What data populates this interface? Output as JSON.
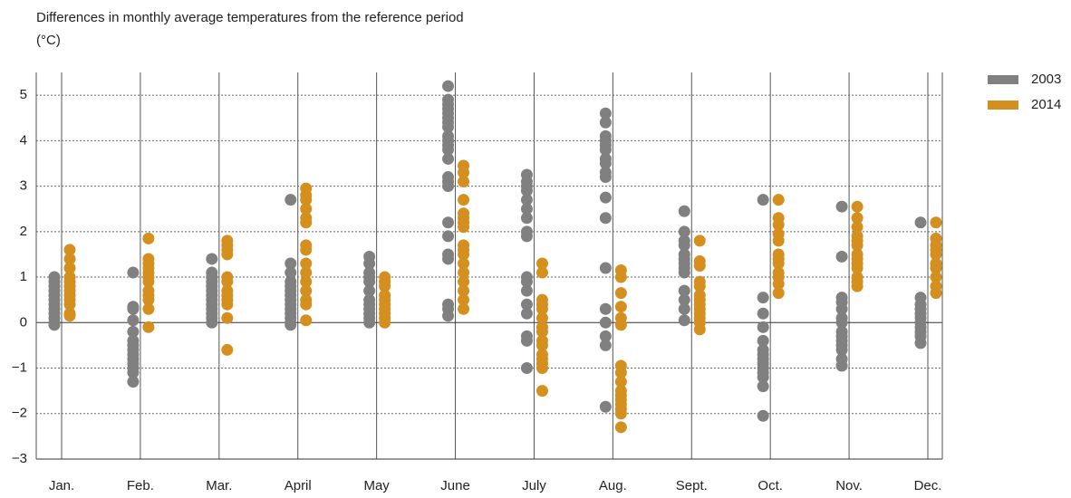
{
  "chart_data": {
    "type": "strip",
    "title": "Differences in monthly average temperatures from the reference period",
    "subtitle": "(°C)",
    "categories": [
      "Jan.",
      "Feb.",
      "Mar.",
      "April",
      "May",
      "June",
      "July",
      "Aug.",
      "Sept.",
      "Oct.",
      "Nov.",
      "Dec."
    ],
    "ylim": [
      -3,
      5.5
    ],
    "yticks": [
      {
        "value": -3,
        "label": "−3"
      },
      {
        "value": -2,
        "label": "−2"
      },
      {
        "value": -1,
        "label": "−1"
      },
      0,
      1,
      2,
      3,
      4,
      5
    ],
    "grid": true,
    "legend": "top-right",
    "series": [
      {
        "name": "2003",
        "color": "#808080",
        "values": [
          [
            1.0,
            0.9,
            0.8,
            0.7,
            0.6,
            0.5,
            0.4,
            0.3,
            0.2,
            0.1,
            0.0,
            -0.05
          ],
          [
            1.1,
            0.35,
            0.3,
            0.05,
            -0.2,
            -0.4,
            -0.5,
            -0.6,
            -0.7,
            -0.8,
            -0.9,
            -1.0,
            -1.1,
            -1.3
          ],
          [
            1.4,
            1.1,
            1.0,
            0.9,
            0.8,
            0.7,
            0.6,
            0.5,
            0.4,
            0.3,
            0.2,
            0.1,
            0.0
          ],
          [
            2.7,
            1.3,
            1.1,
            0.9,
            0.8,
            0.7,
            0.6,
            0.5,
            0.4,
            0.3,
            0.2,
            0.1,
            0.0,
            -0.05
          ],
          [
            1.45,
            1.3,
            1.1,
            1.0,
            0.9,
            0.7,
            0.5,
            0.4,
            0.3,
            0.2,
            0.1,
            0.0
          ],
          [
            5.2,
            4.9,
            4.8,
            4.7,
            4.6,
            4.5,
            4.4,
            4.3,
            4.1,
            4.0,
            3.9,
            3.8,
            3.6,
            3.2,
            3.1,
            3.0,
            2.2,
            1.9,
            1.5,
            1.4,
            0.4,
            0.3,
            0.15
          ],
          [
            3.25,
            3.1,
            3.0,
            2.9,
            2.7,
            2.5,
            2.3,
            2.0,
            1.9,
            1.0,
            0.9,
            0.7,
            0.4,
            0.2,
            -0.3,
            -0.4,
            -1.0
          ],
          [
            4.6,
            4.4,
            4.1,
            4.0,
            3.9,
            3.8,
            3.6,
            3.5,
            3.3,
            3.2,
            2.75,
            2.3,
            1.2,
            0.3,
            0.0,
            -0.3,
            -0.5,
            -1.85
          ],
          [
            2.45,
            2.0,
            1.8,
            1.7,
            1.5,
            1.4,
            1.3,
            1.2,
            1.1,
            0.7,
            0.5,
            0.3,
            0.05
          ],
          [
            2.7,
            0.55,
            0.2,
            -0.1,
            -0.4,
            -0.6,
            -0.7,
            -0.8,
            -0.9,
            -1.0,
            -1.1,
            -1.2,
            -1.4,
            -2.05
          ],
          [
            2.55,
            1.45,
            0.55,
            0.45,
            0.3,
            0.1,
            0.0,
            -0.2,
            -0.3,
            -0.4,
            -0.5,
            -0.6,
            -0.8,
            -0.95
          ],
          [
            2.2,
            0.55,
            0.4,
            0.3,
            0.2,
            0.1,
            0.0,
            -0.1,
            -0.2,
            -0.3,
            -0.45
          ]
        ]
      },
      {
        "name": "2014",
        "color": "#d58f1e",
        "values": [
          [
            1.6,
            1.4,
            1.2,
            1.0,
            0.9,
            0.8,
            0.7,
            0.6,
            0.5,
            0.4,
            0.2,
            0.15
          ],
          [
            1.85,
            1.4,
            1.3,
            1.2,
            1.1,
            1.0,
            0.9,
            0.7,
            0.6,
            0.5,
            0.3,
            -0.1
          ],
          [
            1.8,
            1.7,
            1.6,
            1.5,
            1.0,
            0.9,
            0.7,
            0.6,
            0.5,
            0.4,
            0.1,
            -0.6
          ],
          [
            2.95,
            2.8,
            2.7,
            2.5,
            2.3,
            2.2,
            1.7,
            1.6,
            1.3,
            1.1,
            0.9,
            0.7,
            0.5,
            0.4,
            0.05
          ],
          [
            1.0,
            0.9,
            0.8,
            0.6,
            0.5,
            0.4,
            0.3,
            0.2,
            0.1,
            0.0
          ],
          [
            3.45,
            3.3,
            3.1,
            2.7,
            2.4,
            2.3,
            2.2,
            2.1,
            1.7,
            1.6,
            1.5,
            1.3,
            1.1,
            0.9,
            0.7,
            0.5,
            0.3
          ],
          [
            1.3,
            1.1,
            0.5,
            0.4,
            0.3,
            0.1,
            -0.1,
            -0.2,
            -0.4,
            -0.5,
            -0.7,
            -0.8,
            -0.9,
            -1.0,
            -1.5
          ],
          [
            1.15,
            1.0,
            0.65,
            0.35,
            0.1,
            -0.05,
            -0.95,
            -1.1,
            -1.3,
            -1.5,
            -1.6,
            -1.7,
            -1.8,
            -1.9,
            -2.0,
            -2.3
          ],
          [
            1.8,
            1.35,
            1.25,
            0.9,
            0.8,
            0.6,
            0.5,
            0.4,
            0.3,
            0.2,
            0.1,
            0.0,
            -0.15
          ],
          [
            2.7,
            2.3,
            2.15,
            1.95,
            1.8,
            1.5,
            1.4,
            1.3,
            1.1,
            1.0,
            0.85,
            0.65
          ],
          [
            2.55,
            2.3,
            2.1,
            1.9,
            1.8,
            1.7,
            1.5,
            1.4,
            1.3,
            1.2,
            1.0,
            0.9,
            0.8
          ],
          [
            2.2,
            1.85,
            1.7,
            1.6,
            1.5,
            1.3,
            1.2,
            1.0,
            0.8,
            0.65
          ]
        ]
      }
    ]
  }
}
